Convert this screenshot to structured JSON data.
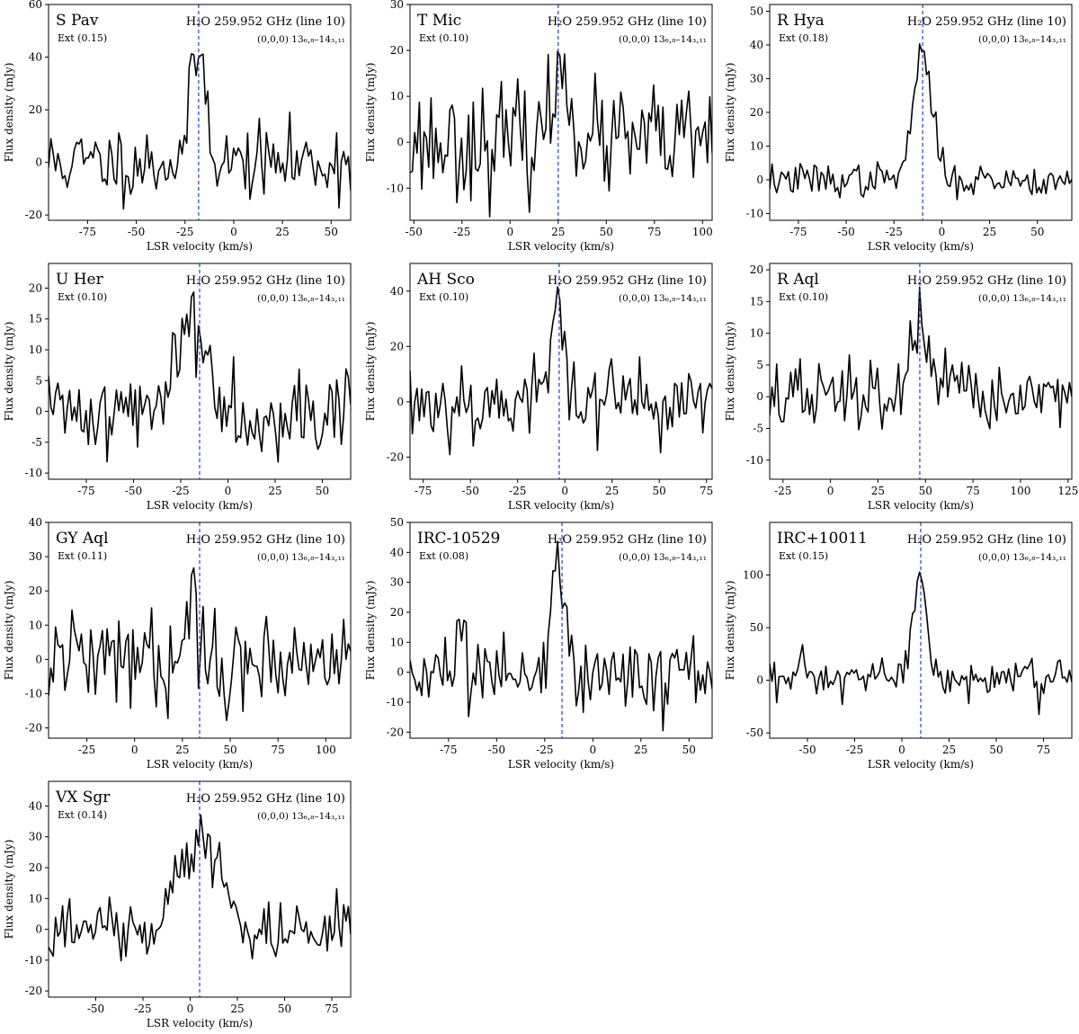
{
  "figure": {
    "line_label": "H₂O 259.952 GHz (line 10)",
    "transition_label": "(0,0,0) 13₆,₈–14₃,₁₁",
    "xlabel": "LSR velocity (km/s)",
    "ylabel": "Flux density (mJy)",
    "colors": {
      "spectrum": "#000000",
      "vline": "#1f3fd8"
    }
  },
  "chart_data": [
    {
      "type": "line",
      "star": "S Pav",
      "ext": "Ext (0.15)",
      "xlim": [
        -95,
        60
      ],
      "ylim": [
        -22,
        60
      ],
      "xticks": [
        -75,
        -50,
        -25,
        0,
        25,
        50
      ],
      "yticks": [
        -20,
        0,
        20,
        40,
        60
      ],
      "vline": -18,
      "peak": {
        "center": -18,
        "amp": 42,
        "width": 4
      },
      "noise": 7,
      "seed": 11,
      "series": [
        {
          "x_start": -95,
          "x_end": 60,
          "n": 130
        }
      ]
    },
    {
      "type": "line",
      "star": "T Mic",
      "ext": "Ext (0.10)",
      "xlim": [
        -52,
        105
      ],
      "ylim": [
        -17,
        30
      ],
      "xticks": [
        -50,
        -25,
        0,
        25,
        50,
        75,
        100
      ],
      "yticks": [
        -10,
        0,
        10,
        20,
        30
      ],
      "vline": 25,
      "peak": {
        "center": 27,
        "amp": 15,
        "width": 5
      },
      "noise": 6,
      "seed": 23,
      "series": [
        {
          "x_start": -52,
          "x_end": 105,
          "n": 130
        }
      ]
    },
    {
      "type": "line",
      "star": "R Hya",
      "ext": "Ext (0.18)",
      "xlim": [
        -90,
        68
      ],
      "ylim": [
        -12,
        52
      ],
      "xticks": [
        -75,
        -50,
        -25,
        0,
        25,
        50
      ],
      "yticks": [
        -10,
        0,
        10,
        20,
        30,
        40,
        50
      ],
      "vline": -10,
      "peak": {
        "center": -10,
        "amp": 37,
        "width": 5
      },
      "noise": 2.5,
      "seed": 37,
      "series": [
        {
          "x_start": -90,
          "x_end": 68,
          "n": 130
        }
      ]
    },
    {
      "type": "line",
      "star": "U Her",
      "ext": "Ext (0.10)",
      "xlim": [
        -95,
        65
      ],
      "ylim": [
        -11,
        24
      ],
      "xticks": [
        -75,
        -50,
        -25,
        0,
        25,
        50
      ],
      "yticks": [
        -10,
        -5,
        0,
        5,
        10,
        15,
        20
      ],
      "vline": -15,
      "peak": {
        "center": -19,
        "amp": 15,
        "width": 8
      },
      "noise": 3.5,
      "seed": 41,
      "series": [
        {
          "x_start": -95,
          "x_end": 65,
          "n": 130
        }
      ]
    },
    {
      "type": "line",
      "star": "AH Sco",
      "ext": "Ext (0.10)",
      "xlim": [
        -82,
        78
      ],
      "ylim": [
        -28,
        50
      ],
      "xticks": [
        -75,
        -50,
        -25,
        0,
        25,
        50,
        75
      ],
      "yticks": [
        -20,
        0,
        20,
        40
      ],
      "vline": -3,
      "peak": {
        "center": -3,
        "amp": 36,
        "width": 4
      },
      "noise": 8,
      "seed": 53,
      "series": [
        {
          "x_start": -82,
          "x_end": 78,
          "n": 130
        }
      ]
    },
    {
      "type": "line",
      "star": "R Aql",
      "ext": "Ext (0.10)",
      "xlim": [
        -32,
        127
      ],
      "ylim": [
        -13,
        21
      ],
      "xticks": [
        -25,
        0,
        25,
        50,
        75,
        100,
        125
      ],
      "yticks": [
        -10,
        -5,
        0,
        5,
        10,
        15,
        20
      ],
      "vline": 47,
      "peak": {
        "center": 46,
        "amp": 13,
        "width": 4
      },
      "noise": 3,
      "seed": 67,
      "series": [
        {
          "x_start": -32,
          "x_end": 127,
          "n": 130
        }
      ]
    },
    {
      "type": "line",
      "star": "GY Aql",
      "ext": "Ext (0.11)",
      "xlim": [
        -45,
        113
      ],
      "ylim": [
        -23,
        40
      ],
      "xticks": [
        -25,
        0,
        25,
        50,
        75,
        100
      ],
      "yticks": [
        -20,
        -10,
        0,
        10,
        20,
        30,
        40
      ],
      "vline": 34,
      "peak": {
        "center": 31,
        "amp": 16,
        "width": 4
      },
      "noise": 7,
      "seed": 79,
      "series": [
        {
          "x_start": -45,
          "x_end": 113,
          "n": 130
        }
      ]
    },
    {
      "type": "line",
      "star": "IRC-10529",
      "ext": "Ext (0.08)",
      "xlim": [
        -95,
        62
      ],
      "ylim": [
        -22,
        50
      ],
      "xticks": [
        -75,
        -50,
        -25,
        0,
        25,
        50
      ],
      "yticks": [
        -20,
        -10,
        0,
        10,
        20,
        30,
        40,
        50
      ],
      "vline": -16,
      "peak": {
        "center": -18,
        "amp": 33,
        "width": 4
      },
      "noise": 7,
      "seed": 83,
      "series": [
        {
          "x_start": -95,
          "x_end": 62,
          "n": 130
        }
      ]
    },
    {
      "type": "line",
      "star": "IRC+10011",
      "ext": "Ext (0.15)",
      "xlim": [
        -70,
        90
      ],
      "ylim": [
        -55,
        150
      ],
      "xticks": [
        -50,
        -25,
        0,
        25,
        50,
        75
      ],
      "yticks": [
        -50,
        0,
        50,
        100
      ],
      "vline": 10,
      "peak": {
        "center": 9,
        "amp": 106,
        "width": 3.5
      },
      "noise": 11,
      "seed": 97,
      "series": [
        {
          "x_start": -70,
          "x_end": 90,
          "n": 130
        }
      ]
    },
    {
      "type": "line",
      "star": "VX Sgr",
      "ext": "Ext (0.14)",
      "xlim": [
        -75,
        85
      ],
      "ylim": [
        -22,
        48
      ],
      "xticks": [
        -50,
        -25,
        0,
        25,
        50,
        75
      ],
      "yticks": [
        -20,
        -10,
        0,
        10,
        20,
        30,
        40
      ],
      "vline": 5,
      "peak": {
        "center": 6,
        "amp": 32,
        "width": 10
      },
      "noise": 5,
      "seed": 103,
      "series": [
        {
          "x_start": -75,
          "x_end": 85,
          "n": 130
        }
      ]
    }
  ]
}
